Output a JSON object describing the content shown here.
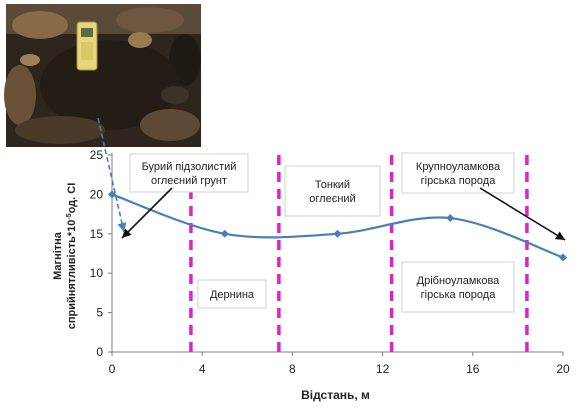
{
  "chart_data": {
    "type": "line",
    "title": "",
    "xlabel": "Відстань, м",
    "ylabel": "Магнітна сприйнятливість*10-5од. СІ",
    "ylabel_lines": [
      "Магнітна",
      "сприйнятливість*10",
      "-5",
      "од. СІ"
    ],
    "xlim": [
      0,
      20
    ],
    "ylim": [
      0,
      25
    ],
    "x_ticks": [
      0,
      4,
      8,
      12,
      16,
      20
    ],
    "y_ticks": [
      0,
      5,
      10,
      15,
      20,
      25
    ],
    "grid": false,
    "legend": "none",
    "series": [
      {
        "x": [
          0,
          5,
          10,
          15,
          20
        ],
        "values": [
          20,
          15,
          15,
          17,
          12
        ],
        "color": "#4a7ebb",
        "marker": "diamond",
        "smooth": true
      }
    ],
    "boundaries": {
      "x": [
        3.5,
        7.4,
        12.4,
        18.4
      ],
      "color": "#e020c8",
      "style": "dashed"
    },
    "annotations": [
      {
        "lines": [
          "Бурий підзолистий",
          "оглеєний грунт"
        ]
      },
      {
        "lines": [
          "Тонкий",
          "оглеєний"
        ]
      },
      {
        "lines": [
          "Крупноуламкова",
          "гірська порода"
        ]
      },
      {
        "lines": [
          "Дернина"
        ]
      },
      {
        "lines": [
          "Дрібноуламкова",
          "гірська порода"
        ]
      }
    ]
  },
  "photo": {
    "description_icon": "soil-field-photo",
    "colors": {
      "soil": "#3a2f24",
      "leaves": "#7a5a3a",
      "device": "#e8d77a"
    }
  }
}
